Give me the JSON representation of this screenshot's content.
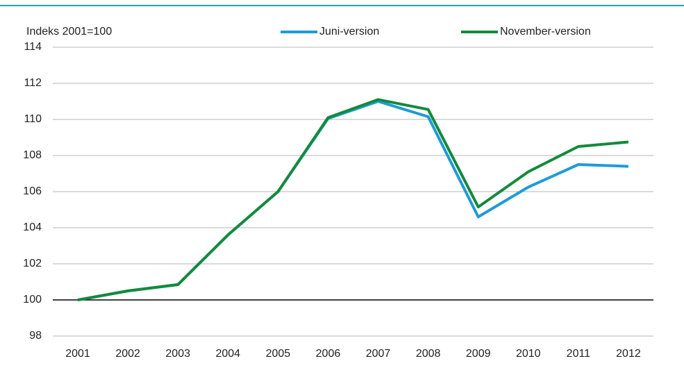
{
  "chart_data": {
    "type": "line",
    "y_label": "Indeks 2001=100",
    "categories": [
      "2001",
      "2002",
      "2003",
      "2004",
      "2005",
      "2006",
      "2007",
      "2008",
      "2009",
      "2010",
      "2011",
      "2012"
    ],
    "series": [
      {
        "name": "Juni-version",
        "color": "#1f9bd7",
        "values": [
          100,
          100.5,
          100.85,
          103.6,
          106.0,
          110.05,
          111.0,
          110.15,
          104.6,
          106.25,
          107.5,
          107.4
        ]
      },
      {
        "name": "November-version",
        "color": "#138a3c",
        "values": [
          100,
          100.5,
          100.85,
          103.6,
          106.0,
          110.1,
          111.1,
          110.55,
          105.15,
          107.1,
          108.5,
          108.75
        ]
      }
    ],
    "ylim": [
      98,
      114
    ],
    "yticks": [
      98,
      100,
      102,
      104,
      106,
      108,
      110,
      112,
      114
    ],
    "baseline": 100,
    "grid": true
  }
}
